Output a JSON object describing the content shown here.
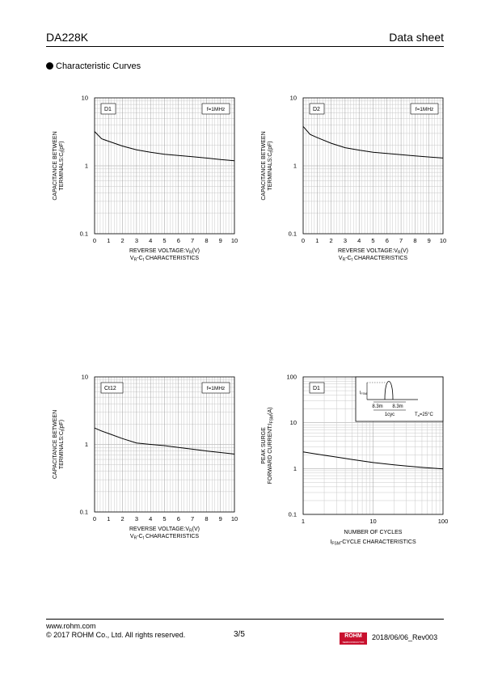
{
  "header": {
    "part": "DA228K",
    "doc": "Data sheet"
  },
  "section": {
    "title": "Characteristic Curves"
  },
  "footer": {
    "url": "www.rohm.com",
    "copyright": "© 2017 ROHM Co., Ltd. All rights reserved.",
    "page": "3/5",
    "logo": "ROHM",
    "logo_sub": "SEMICONDUCTOR",
    "revision": "2018/06/06_Rev003"
  },
  "chart_data": [
    {
      "type": "line",
      "legend_box": "D1",
      "condition": "f=1MHz",
      "xlabel": "REVERSE VOLTAGE:VR(V)",
      "ylabel_line1": "CAPACITANCE BETWEEN",
      "ylabel_line2": "TERMINALS:Ct(pF)",
      "caption": "VR-Ct CHARACTERISTICS",
      "xscale": "linear",
      "yscale": "log",
      "xlim": [
        0,
        10
      ],
      "ylim": [
        0.1,
        10
      ],
      "xticks": [
        "0",
        "1",
        "2",
        "3",
        "4",
        "5",
        "6",
        "7",
        "8",
        "9",
        "10"
      ],
      "yticks": [
        "0.1",
        "1",
        "10"
      ],
      "x": [
        0,
        0.5,
        1,
        2,
        3,
        4,
        5,
        6,
        7,
        8,
        9,
        10
      ],
      "y": [
        3.2,
        2.5,
        2.3,
        1.95,
        1.72,
        1.58,
        1.48,
        1.42,
        1.36,
        1.3,
        1.24,
        1.19
      ]
    },
    {
      "type": "line",
      "legend_box": "D2",
      "condition": "f=1MHz",
      "xlabel": "REVERSE VOLTAGE:VR(V)",
      "ylabel_line1": "CAPACITANCE BETWEEN",
      "ylabel_line2": "TERMINALS:Ct(pF)",
      "caption": "VR-Ct CHARACTERISTICS",
      "xscale": "linear",
      "yscale": "log",
      "xlim": [
        0,
        10
      ],
      "ylim": [
        0.1,
        10
      ],
      "xticks": [
        "0",
        "1",
        "2",
        "3",
        "4",
        "5",
        "6",
        "7",
        "8",
        "9",
        "10"
      ],
      "yticks": [
        "0.1",
        "1",
        "10"
      ],
      "x": [
        0,
        0.5,
        1,
        2,
        3,
        4,
        5,
        6,
        7,
        8,
        9,
        10
      ],
      "y": [
        3.8,
        2.9,
        2.6,
        2.15,
        1.85,
        1.7,
        1.58,
        1.52,
        1.46,
        1.4,
        1.35,
        1.3
      ]
    },
    {
      "type": "line",
      "legend_box": "Ct12",
      "condition": "f=1MHz",
      "xlabel": "REVERSE VOLTAGE:VR(V)",
      "ylabel_line1": "CAPACITANCE BETWEEN",
      "ylabel_line2": "TERMINALS:Ct(pF)",
      "caption": "VR-Ct CHARACTERISTICS",
      "xscale": "linear",
      "yscale": "log",
      "xlim": [
        0,
        10
      ],
      "ylim": [
        0.1,
        10
      ],
      "xticks": [
        "0",
        "1",
        "2",
        "3",
        "4",
        "5",
        "6",
        "7",
        "8",
        "9",
        "10"
      ],
      "yticks": [
        "0.1",
        "1",
        "10"
      ],
      "x": [
        0,
        0.5,
        1,
        2,
        3,
        4,
        5,
        6,
        7,
        8,
        9,
        10
      ],
      "y": [
        1.75,
        1.58,
        1.45,
        1.22,
        1.05,
        1.0,
        0.96,
        0.9,
        0.85,
        0.8,
        0.76,
        0.72
      ]
    },
    {
      "type": "line",
      "legend_box": "D1",
      "xlabel": "NUMBER OF CYCLES",
      "ylabel_line1": "PEAK SURGE",
      "ylabel_line2": "FORWARD CURRENT:IFSM(A)",
      "caption": "IFSM-CYCLE CHARACTERISTICS",
      "xscale": "log",
      "yscale": "log",
      "xlim": [
        1,
        100
      ],
      "ylim": [
        0.1,
        100
      ],
      "xticks": [
        "1",
        "10",
        "100"
      ],
      "yticks": [
        "0.1",
        "1",
        "10",
        "100"
      ],
      "x": [
        1,
        2,
        3,
        5,
        10,
        20,
        50,
        100
      ],
      "y": [
        2.3,
        1.95,
        1.78,
        1.58,
        1.35,
        1.2,
        1.06,
        0.98
      ],
      "inset": {
        "ifsm": "IFSM",
        "t1": "8.3m",
        "t2": "8.3m",
        "cyc": "1cyc",
        "ta": "Ta=25°C"
      }
    }
  ]
}
